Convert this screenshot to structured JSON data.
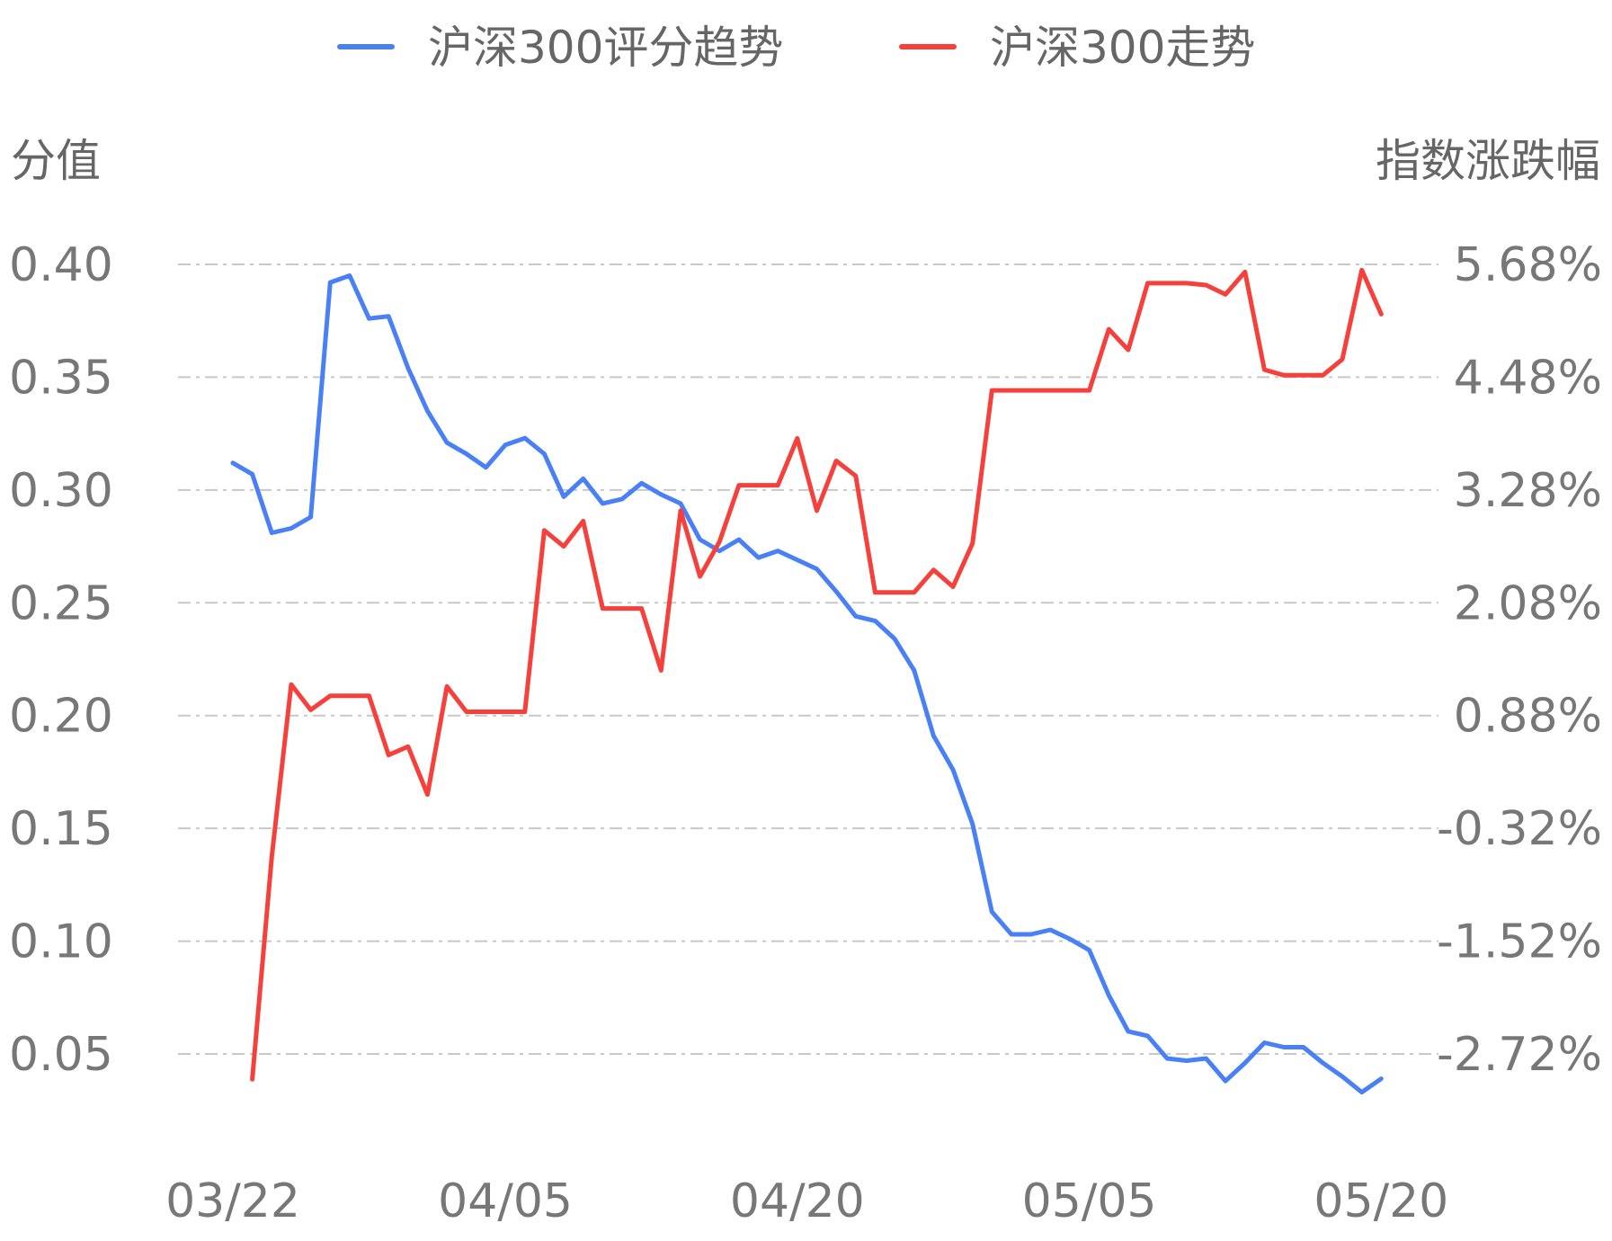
{
  "chart_data": {
    "type": "line",
    "legend_position": "top-center",
    "grid": true,
    "colors": {
      "score": "#4a80f5",
      "index": "#f5403c"
    },
    "y_left_label": "分值",
    "y_right_label": "指数涨跌幅",
    "y_left_ticks": [
      "0.40",
      "0.35",
      "0.30",
      "0.25",
      "0.20",
      "0.15",
      "0.10",
      "0.05"
    ],
    "y_right_ticks": [
      "5.68%",
      "4.48%",
      "3.28%",
      "2.08%",
      "0.88%",
      "-0.32%",
      "-1.52%",
      "-2.72%"
    ],
    "y_left_range": [
      0.05,
      0.4
    ],
    "y_right_range": [
      -2.72,
      5.68
    ],
    "x_ticks": [
      "03/22",
      "04/05",
      "04/20",
      "05/05",
      "05/20"
    ],
    "x_ticks_index": [
      0,
      14,
      29,
      44,
      59
    ],
    "series": [
      {
        "name": "沪深300评分趋势",
        "axis": "left",
        "values": [
          0.312,
          0.307,
          0.281,
          0.283,
          0.288,
          0.392,
          0.395,
          0.376,
          0.377,
          0.354,
          0.335,
          0.321,
          0.316,
          0.31,
          0.32,
          0.323,
          0.316,
          0.297,
          0.305,
          0.294,
          0.296,
          0.303,
          0.298,
          0.294,
          0.278,
          0.273,
          0.278,
          0.27,
          0.273,
          0.269,
          0.265,
          0.255,
          0.244,
          0.242,
          0.234,
          0.22,
          0.191,
          0.176,
          0.152,
          0.113,
          0.103,
          0.103,
          0.105,
          0.101,
          0.096,
          0.076,
          0.06,
          0.058,
          0.048,
          0.047,
          0.048,
          0.038,
          0.046,
          0.055,
          0.053,
          0.053,
          0.046,
          0.04,
          0.033,
          0.039
        ]
      },
      {
        "name": "沪深300走势",
        "axis": "right",
        "values": [
          null,
          -2.99,
          -0.62,
          1.21,
          0.94,
          1.09,
          1.09,
          1.09,
          0.46,
          0.55,
          0.04,
          1.19,
          0.92,
          0.92,
          0.92,
          0.92,
          2.85,
          2.68,
          2.95,
          2.02,
          2.02,
          2.02,
          1.36,
          3.06,
          2.36,
          2.73,
          3.33,
          3.33,
          3.33,
          3.83,
          3.06,
          3.59,
          3.43,
          2.19,
          2.19,
          2.19,
          2.43,
          2.25,
          2.71,
          4.34,
          4.34,
          4.34,
          4.34,
          4.34,
          4.34,
          4.99,
          4.77,
          5.48,
          5.48,
          5.48,
          5.46,
          5.36,
          5.6,
          4.56,
          4.5,
          4.5,
          4.5,
          4.67,
          5.62,
          5.15
        ]
      }
    ]
  }
}
